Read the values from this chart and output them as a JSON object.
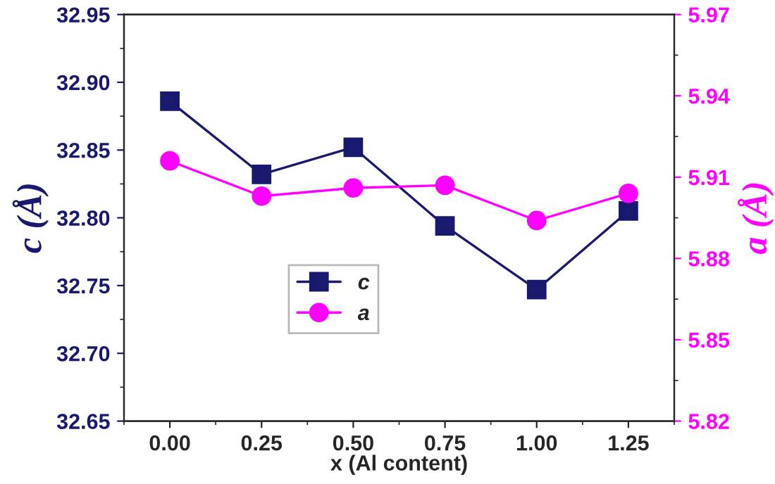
{
  "chart_data": {
    "type": "line",
    "xlabel": "x (Al content)",
    "ylabel": "c (Å)",
    "y2label": "a (Å)",
    "x": [
      0.0,
      0.25,
      0.5,
      0.75,
      1.0,
      1.25
    ],
    "series": [
      {
        "name": "c",
        "color": "#191970",
        "marker": "square",
        "values": [
          32.886,
          32.832,
          32.852,
          32.794,
          32.747,
          32.805
        ]
      },
      {
        "name": "a",
        "color": "#ff00ff",
        "marker": "circle",
        "axis": "y2",
        "values": [
          5.916,
          5.903,
          5.906,
          5.907,
          5.894,
          5.904
        ]
      }
    ],
    "xlim": [
      -0.125,
      1.375
    ],
    "xticks": [
      {
        "value": 0,
        "label": "0.00"
      },
      {
        "value": 0.25,
        "label": "0.25"
      },
      {
        "value": 0.5,
        "label": "0.50"
      },
      {
        "value": 0.75,
        "label": "0.75"
      },
      {
        "value": 1,
        "label": "1.00"
      },
      {
        "value": 1.25,
        "label": "1.25"
      }
    ],
    "ylim": [
      32.65,
      32.95
    ],
    "yticks": [
      {
        "value": 32.65,
        "label": "32.65"
      },
      {
        "value": 32.7,
        "label": "32.70"
      },
      {
        "value": 32.75,
        "label": "32.75"
      },
      {
        "value": 32.8,
        "label": "32.80"
      },
      {
        "value": 32.85,
        "label": "32.85"
      },
      {
        "value": 32.9,
        "label": "32.90"
      },
      {
        "value": 32.95,
        "label": "32.95"
      }
    ],
    "y2lim": [
      5.82,
      5.97
    ],
    "y2ticks": [
      5.82,
      5.85,
      5.88,
      5.91,
      5.94,
      5.97
    ],
    "grid": false,
    "legend": "center left",
    "line_style": "solid"
  }
}
